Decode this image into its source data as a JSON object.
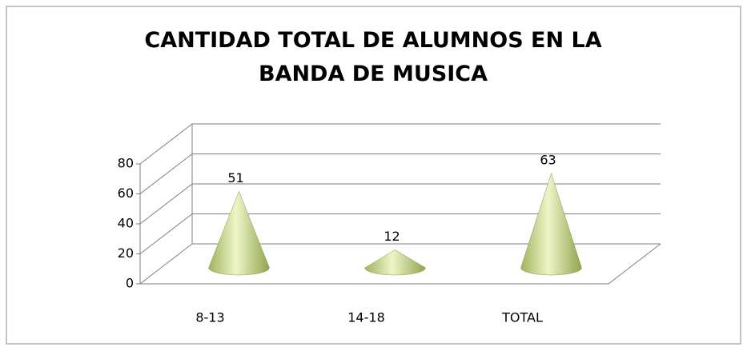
{
  "chart_data": {
    "type": "cone3d",
    "title": "CANTIDAD TOTAL DE ALUMNOS EN LA BANDA DE MUSICA",
    "categories": [
      "8-13",
      "14-18",
      "TOTAL"
    ],
    "values": [
      51,
      12,
      63
    ],
    "ylim": [
      0,
      80
    ],
    "yticks": [
      0,
      20,
      40,
      60,
      80
    ],
    "grid": true,
    "color": "#b5c67a"
  }
}
